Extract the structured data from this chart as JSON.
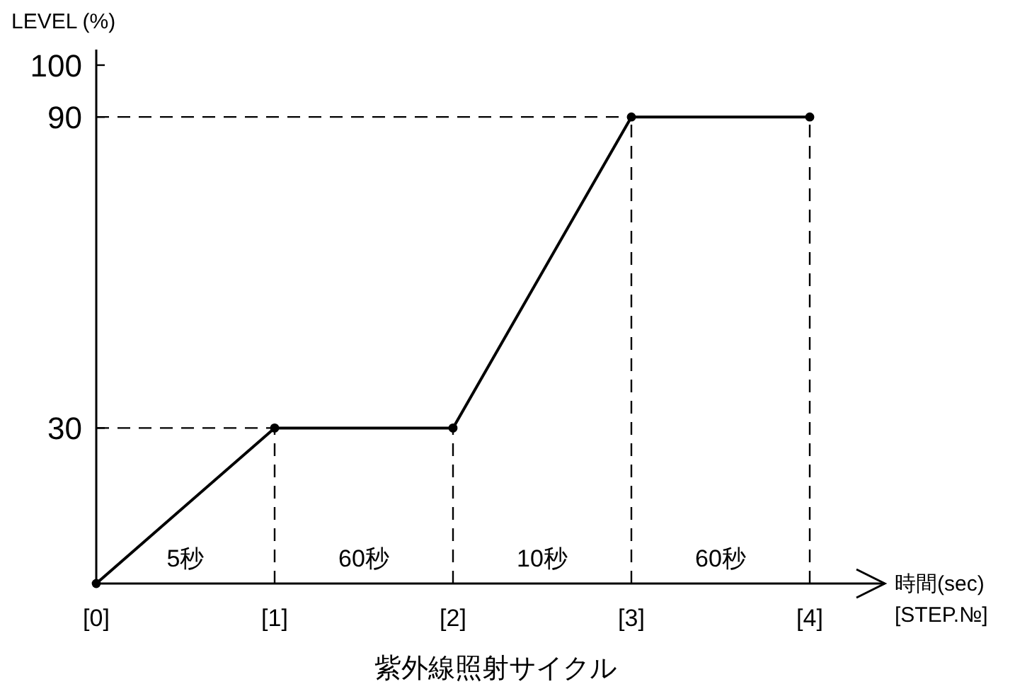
{
  "chart_data": {
    "type": "line",
    "title": "紫外線照射サイクル",
    "xlabel": "時間(sec)\n[STEP.№]",
    "ylabel": "LEVEL (%)",
    "categories": [
      "[0]",
      "[1]",
      "[2]",
      "[3]",
      "[4]"
    ],
    "series": [
      {
        "color": "#000000",
        "values": [
          0,
          30,
          30,
          90,
          90
        ]
      }
    ],
    "ylim": [
      0,
      103
    ],
    "yticks": [
      30,
      90,
      100
    ],
    "marker": "circle",
    "line_style": "solid",
    "ref_lines": [
      {
        "axis": "y",
        "value": 30,
        "line_style": "dashed",
        "color": "#000000"
      },
      {
        "axis": "y",
        "value": 90,
        "line_style": "dashed",
        "color": "#000000"
      },
      {
        "axis": "x",
        "value": "[1]",
        "line_style": "dashed",
        "color": "#000000"
      },
      {
        "axis": "x",
        "value": "[2]",
        "line_style": "dashed",
        "color": "#000000"
      },
      {
        "axis": "x",
        "value": "[3]",
        "line_style": "dashed",
        "color": "#000000"
      },
      {
        "axis": "x",
        "value": "[4]",
        "line_style": "dashed",
        "color": "#000000"
      }
    ],
    "annotations": [
      "5秒",
      "60秒",
      "10秒",
      "60秒"
    ]
  }
}
